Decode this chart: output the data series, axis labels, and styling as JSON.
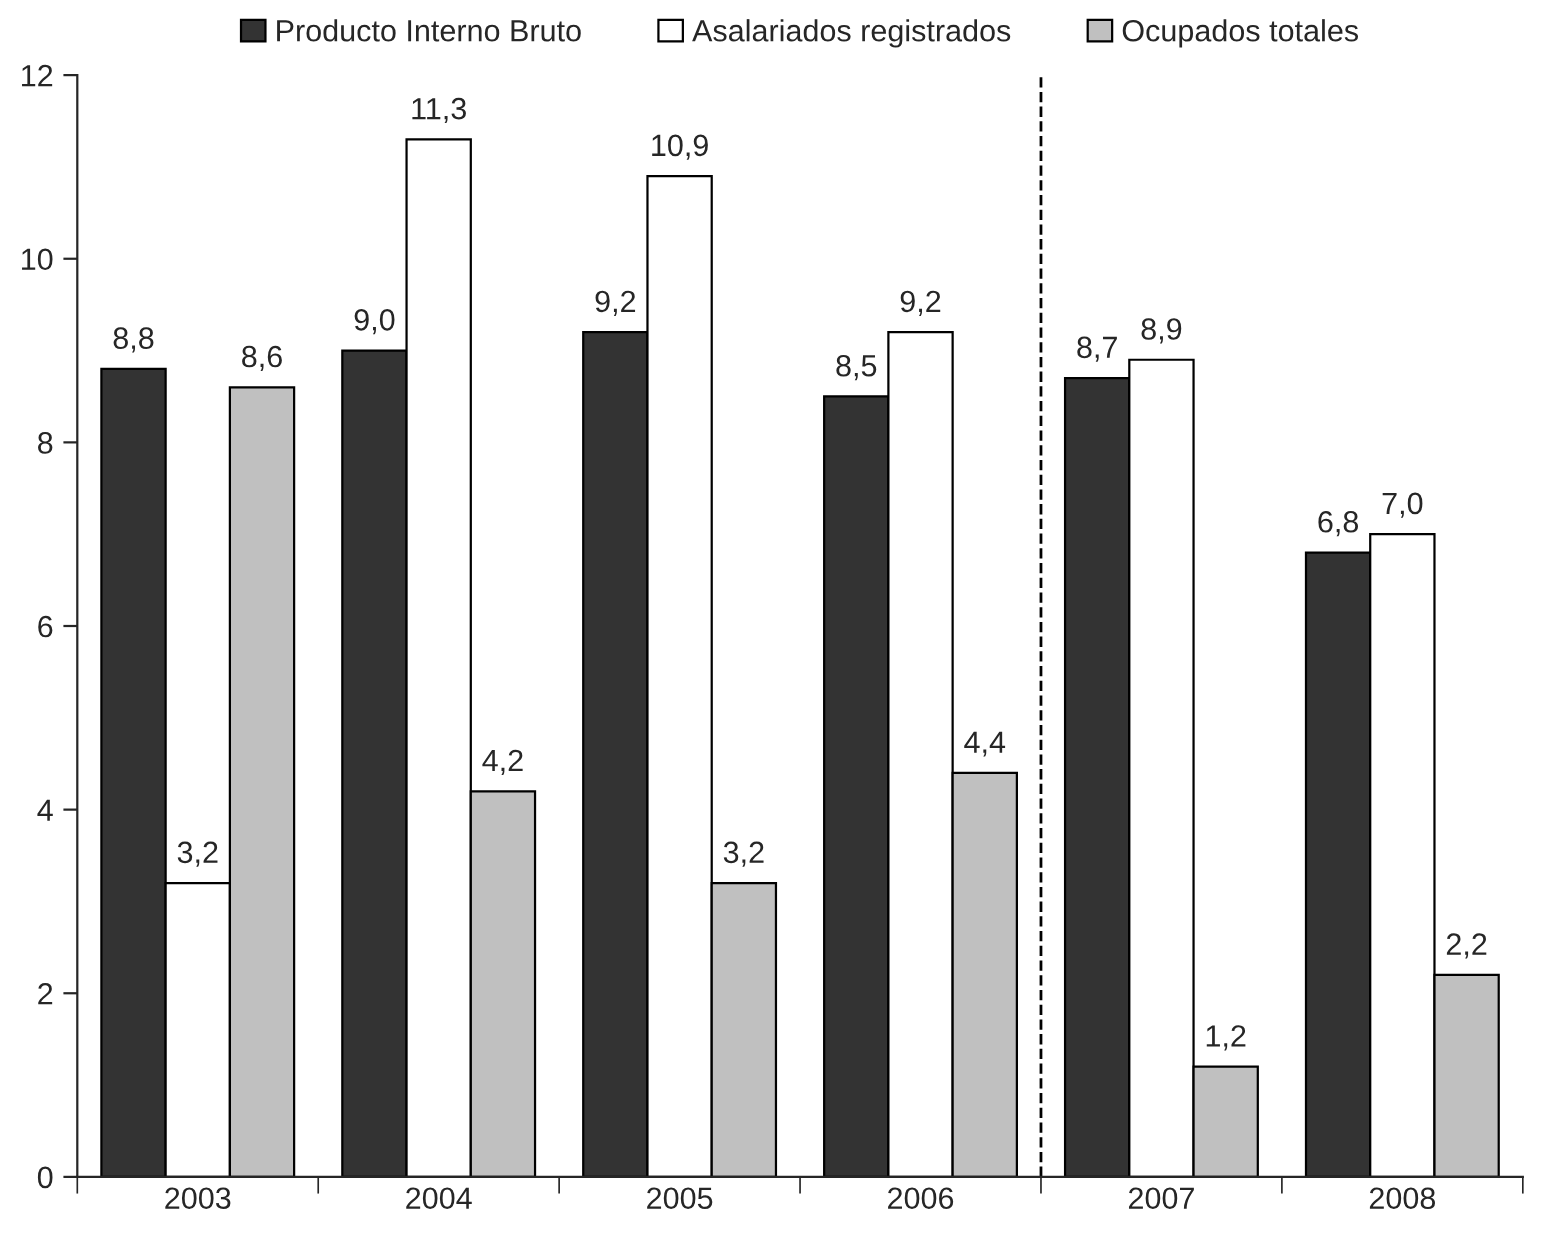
{
  "chart_data": {
    "type": "bar",
    "categories": [
      "2003",
      "2004",
      "2005",
      "2006",
      "2007",
      "2008"
    ],
    "series": [
      {
        "name": "Producto Interno Bruto",
        "color": "#333333",
        "values": [
          8.8,
          9.0,
          9.2,
          8.5,
          8.7,
          6.8
        ],
        "value_labels": [
          "8,8",
          "9,0",
          "9,2",
          "8,5",
          "8,7",
          "6,8"
        ]
      },
      {
        "name": "Asalariados registrados",
        "color": "#ffffff",
        "values": [
          3.2,
          11.3,
          10.9,
          9.2,
          8.9,
          7.0
        ],
        "value_labels": [
          "3,2",
          "11,3",
          "10,9",
          "9,2",
          "8,9",
          "7,0"
        ]
      },
      {
        "name": "Ocupados totales",
        "color": "#c0c0c0",
        "values": [
          8.6,
          4.2,
          3.2,
          4.4,
          1.2,
          2.2
        ],
        "value_labels": [
          "8,6",
          "4,2",
          "3,2",
          "4,4",
          "1,2",
          "2,2"
        ]
      }
    ],
    "ylim": [
      0,
      12
    ],
    "yticks": [
      0,
      2,
      4,
      6,
      8,
      10,
      12
    ],
    "grid": false,
    "legend": "top"
  }
}
